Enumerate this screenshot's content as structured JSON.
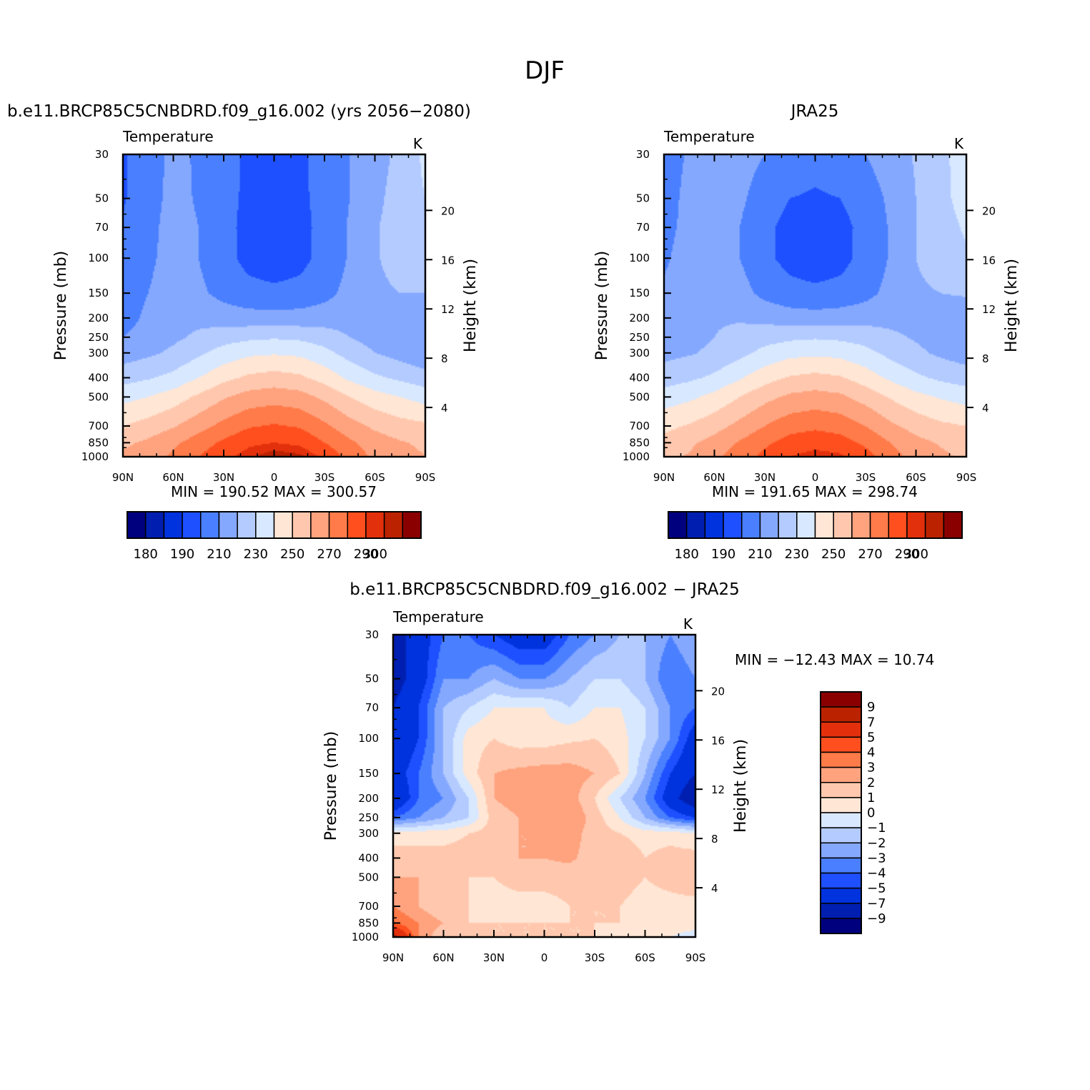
{
  "page": {
    "title": "DJF"
  },
  "colors": {
    "abs_palette": [
      "#00007f",
      "#001fb0",
      "#0032dd",
      "#1e50ff",
      "#4a80ff",
      "#85a8ff",
      "#b3cbff",
      "#d8e8ff",
      "#ffe6d5",
      "#ffc8ae",
      "#ffa37f",
      "#ff7b49",
      "#ff4f1e",
      "#e2300c",
      "#bb2200",
      "#8a0000"
    ],
    "diff_palette": [
      "#8a0000",
      "#bb2200",
      "#e2300c",
      "#ff4f1e",
      "#ff7b49",
      "#ffa37f",
      "#ffc8ae",
      "#ffe6d5",
      "#d8e8ff",
      "#b3cbff",
      "#85a8ff",
      "#4a80ff",
      "#1e50ff",
      "#0032dd",
      "#001fb0",
      "#00007f"
    ]
  },
  "chart_data": [
    {
      "id": "model",
      "type": "heatmap",
      "title": "b.e11.BRCP85C5CNBDRD.f09_g16.002 (yrs 2056−2080)",
      "left_string": "Temperature",
      "units": "K",
      "xlabel": "",
      "ylabel": "Pressure (mb)",
      "y2label": "Height (km)",
      "x_ticks": [
        "90N",
        "60N",
        "30N",
        "0",
        "30S",
        "60S",
        "90S"
      ],
      "y_ticks": [
        "30",
        "50",
        "70",
        "100",
        "150",
        "200",
        "250",
        "300",
        "400",
        "500",
        "700",
        "850",
        "1000"
      ],
      "y2_ticks": [
        "20",
        "16",
        "12",
        "8",
        "4"
      ],
      "min_max": "MIN = 190.52   MAX = 300.57",
      "min": 190.52,
      "max": 300.57,
      "colorbar_labels": [
        "180",
        "190",
        "210",
        "230",
        "250",
        "270",
        "290",
        "300"
      ],
      "x": [
        90,
        75,
        60,
        45,
        30,
        15,
        0,
        -15,
        -30,
        -45,
        -60,
        -75,
        -90
      ],
      "y": [
        30,
        50,
        70,
        100,
        150,
        200,
        250,
        300,
        400,
        500,
        700,
        850,
        1000
      ],
      "values": [
        [
          199,
          206,
          212,
          209,
          204,
          198,
          197,
          198,
          204,
          210,
          215,
          223,
          232
        ],
        [
          199,
          206,
          213,
          209,
          203,
          198,
          197,
          198,
          203,
          210,
          217,
          225,
          230
        ],
        [
          201,
          207,
          214,
          210,
          203,
          197,
          195,
          197,
          203,
          211,
          219,
          225,
          228
        ],
        [
          202,
          208,
          214,
          210,
          203,
          197,
          195,
          197,
          203,
          211,
          219,
          224,
          227
        ],
        [
          205,
          210,
          215,
          212,
          207,
          203,
          202,
          203,
          207,
          213,
          218,
          220,
          220
        ],
        [
          206,
          212,
          216,
          217,
          215,
          214,
          214,
          214,
          215,
          216,
          216,
          215,
          213
        ],
        [
          210,
          214,
          218,
          222,
          226,
          228,
          229,
          228,
          225,
          220,
          216,
          213,
          210
        ],
        [
          215,
          218,
          222,
          228,
          234,
          238,
          239,
          238,
          233,
          226,
          220,
          216,
          212
        ],
        [
          226,
          229,
          233,
          240,
          247,
          252,
          254,
          252,
          246,
          238,
          232,
          228,
          224
        ],
        [
          237,
          240,
          245,
          252,
          259,
          264,
          266,
          264,
          258,
          250,
          244,
          240,
          236
        ],
        [
          250,
          254,
          259,
          266,
          273,
          279,
          281,
          279,
          272,
          264,
          258,
          254,
          252
        ],
        [
          258,
          262,
          268,
          275,
          282,
          288,
          290,
          288,
          280,
          272,
          265,
          261,
          258
        ],
        [
          262,
          265,
          272,
          280,
          287,
          294,
          299,
          297,
          288,
          276,
          268,
          264,
          260
        ]
      ]
    },
    {
      "id": "obs",
      "type": "heatmap",
      "title": "JRA25",
      "left_string": "Temperature",
      "units": "K",
      "xlabel": "",
      "ylabel": "Pressure (mb)",
      "y2label": "Height (km)",
      "x_ticks": [
        "90N",
        "60N",
        "30N",
        "0",
        "30S",
        "60S",
        "90S"
      ],
      "y_ticks": [
        "30",
        "50",
        "70",
        "100",
        "150",
        "200",
        "250",
        "300",
        "400",
        "500",
        "700",
        "850",
        "1000"
      ],
      "y2_ticks": [
        "20",
        "16",
        "12",
        "8",
        "4"
      ],
      "min_max": "MIN = 191.65   MAX = 298.74",
      "min": 191.65,
      "max": 298.74,
      "colorbar_labels": [
        "180",
        "190",
        "210",
        "230",
        "250",
        "270",
        "290",
        "300"
      ],
      "x": [
        90,
        75,
        60,
        45,
        30,
        15,
        0,
        -15,
        -30,
        -45,
        -60,
        -75,
        -90
      ],
      "y": [
        30,
        50,
        70,
        100,
        150,
        200,
        250,
        300,
        400,
        500,
        700,
        850,
        1000
      ],
      "values": [
        [
          206,
          211,
          215,
          214,
          210,
          205,
          203,
          205,
          210,
          215,
          221,
          228,
          234
        ],
        [
          207,
          212,
          215,
          212,
          205,
          200,
          199,
          200,
          205,
          212,
          220,
          228,
          233
        ],
        [
          208,
          212,
          215,
          210,
          202,
          197,
          196,
          197,
          203,
          211,
          220,
          227,
          231
        ],
        [
          209,
          213,
          216,
          210,
          202,
          197,
          195,
          197,
          203,
          211,
          220,
          226,
          229
        ],
        [
          211,
          214,
          217,
          214,
          207,
          203,
          202,
          203,
          207,
          213,
          218,
          220,
          221
        ],
        [
          213,
          216,
          219,
          219,
          217,
          215,
          214,
          215,
          216,
          217,
          216,
          215,
          214
        ],
        [
          214,
          217,
          220,
          223,
          226,
          228,
          229,
          228,
          226,
          222,
          219,
          216,
          214
        ],
        [
          217,
          219,
          222,
          227,
          233,
          237,
          238,
          237,
          233,
          227,
          222,
          218,
          215
        ],
        [
          225,
          228,
          232,
          239,
          246,
          251,
          253,
          251,
          245,
          238,
          232,
          228,
          225
        ],
        [
          235,
          238,
          243,
          250,
          257,
          262,
          264,
          262,
          256,
          249,
          243,
          239,
          236
        ],
        [
          247,
          251,
          256,
          263,
          270,
          276,
          278,
          276,
          270,
          262,
          256,
          252,
          250
        ],
        [
          254,
          258,
          264,
          271,
          278,
          284,
          286,
          284,
          278,
          270,
          263,
          259,
          256
        ],
        [
          257,
          261,
          268,
          275,
          283,
          290,
          294,
          292,
          284,
          274,
          266,
          262,
          258
        ]
      ]
    },
    {
      "id": "diff",
      "type": "heatmap",
      "title": "b.e11.BRCP85C5CNBDRD.f09_g16.002 − JRA25",
      "left_string": "Temperature",
      "units": "K",
      "xlabel": "",
      "ylabel": "Pressure (mb)",
      "y2label": "Height (km)",
      "x_ticks": [
        "90N",
        "60N",
        "30N",
        "0",
        "30S",
        "60S",
        "90S"
      ],
      "y_ticks": [
        "30",
        "50",
        "70",
        "100",
        "150",
        "200",
        "250",
        "300",
        "400",
        "500",
        "700",
        "850",
        "1000"
      ],
      "y2_ticks": [
        "20",
        "16",
        "12",
        "8",
        "4"
      ],
      "min_max": "MIN = −12.43   MAX =   10.74",
      "min": -12.43,
      "max": 10.74,
      "colorbar_labels": [
        "9",
        "7",
        "5",
        "4",
        "3",
        "2",
        "1",
        "0",
        "−1",
        "−2",
        "−3",
        "−4",
        "−5",
        "−7",
        "−9"
      ],
      "x": [
        90,
        75,
        60,
        45,
        30,
        15,
        0,
        -15,
        -30,
        -45,
        -60,
        -75,
        -90
      ],
      "y": [
        30,
        50,
        70,
        100,
        150,
        200,
        250,
        300,
        400,
        500,
        700,
        850,
        1000
      ],
      "values": [
        [
          -8,
          -6,
          -4,
          -4,
          -5,
          -6,
          -6,
          -4,
          -3,
          -2,
          -2,
          -3,
          -2
        ],
        [
          -8,
          -6,
          -3,
          -3,
          -2,
          -3,
          -3,
          -2,
          -1,
          -1,
          -2,
          -4,
          -3
        ],
        [
          -7,
          -5,
          -2,
          -1,
          0,
          0,
          0,
          -1,
          0,
          0,
          -1,
          -3,
          -4
        ],
        [
          -7,
          -5,
          -2,
          0.5,
          1,
          0.5,
          0.5,
          0.8,
          1,
          0.5,
          -1,
          -3,
          -6
        ],
        [
          -6,
          -4,
          -2,
          0.5,
          2,
          2.3,
          2.5,
          2.5,
          2,
          1,
          -2,
          -5,
          -7
        ],
        [
          -7,
          -4,
          -3,
          -1,
          2,
          2.5,
          2.5,
          2.5,
          1,
          -1,
          -3,
          -6,
          -9
        ],
        [
          -4,
          -3,
          -2,
          -1,
          1.5,
          2,
          2.5,
          3,
          1.5,
          0,
          -2,
          -4,
          -5
        ],
        [
          0.5,
          0.5,
          0.5,
          1,
          1.5,
          2,
          2,
          2.5,
          1.5,
          1,
          0.5,
          0.5,
          0
        ],
        [
          1.5,
          1.5,
          1.5,
          1.5,
          1.5,
          2,
          2,
          2.2,
          1.5,
          2,
          1,
          1.5,
          1.5
        ],
        [
          2,
          2,
          1.5,
          1,
          1,
          1.5,
          1.5,
          1.5,
          1,
          1.5,
          1,
          1.5,
          2
        ],
        [
          3,
          2,
          1,
          1,
          0.5,
          0.5,
          0.5,
          1,
          1,
          1,
          0.5,
          0.5,
          0.5
        ],
        [
          4,
          3,
          2,
          1,
          1,
          1,
          1,
          1,
          1,
          1,
          0.5,
          0.5,
          0.5
        ],
        [
          8,
          3,
          1,
          1.5,
          1,
          1,
          1,
          1,
          1,
          0.5,
          0.5,
          0,
          -0.5
        ]
      ]
    }
  ]
}
